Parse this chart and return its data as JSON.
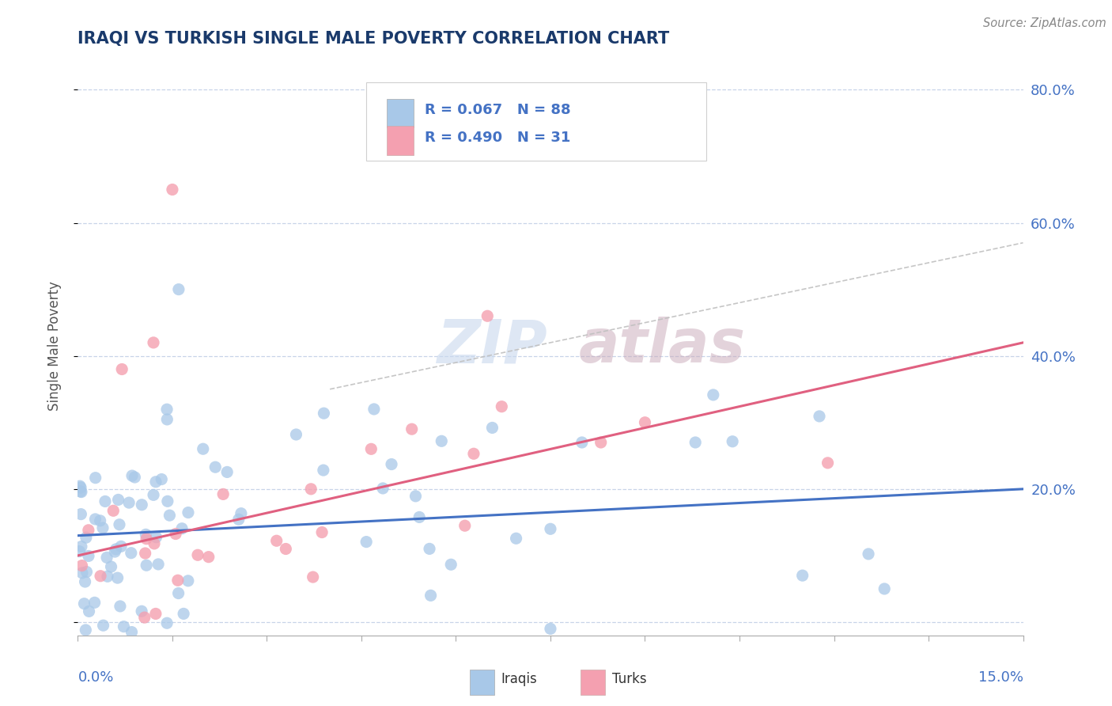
{
  "title": "IRAQI VS TURKISH SINGLE MALE POVERTY CORRELATION CHART",
  "source": "Source: ZipAtlas.com",
  "ylabel": "Single Male Poverty",
  "legend_iraqis": "Iraqis",
  "legend_turks": "Turks",
  "r_iraqi": "0.067",
  "n_iraqi": "88",
  "r_turk": "0.490",
  "n_turk": "31",
  "watermark_zip": "ZIP",
  "watermark_atlas": "atlas",
  "iraqi_color": "#a8c8e8",
  "turk_color": "#f4a0b0",
  "iraqi_line_color": "#4472c4",
  "turk_line_color": "#e06080",
  "dashed_line_color": "#c0c0c0",
  "title_color": "#1a3a6b",
  "axis_label_color": "#4472c4",
  "background_color": "#ffffff",
  "grid_color": "#c8d4e8",
  "xlim": [
    0.0,
    0.15
  ],
  "ylim": [
    -0.02,
    0.85
  ],
  "right_yticks": [
    0.0,
    0.2,
    0.4,
    0.6,
    0.8
  ],
  "right_yticklabels": [
    "",
    "20.0%",
    "40.0%",
    "60.0%",
    "80.0%"
  ],
  "iraqi_line_x0": 0.0,
  "iraqi_line_y0": 0.13,
  "iraqi_line_x1": 0.15,
  "iraqi_line_y1": 0.2,
  "turk_line_x0": 0.0,
  "turk_line_y0": 0.1,
  "turk_line_x1": 0.15,
  "turk_line_y1": 0.42,
  "dash_line_x0": 0.04,
  "dash_line_y0": 0.35,
  "dash_line_x1": 0.15,
  "dash_line_y1": 0.57
}
